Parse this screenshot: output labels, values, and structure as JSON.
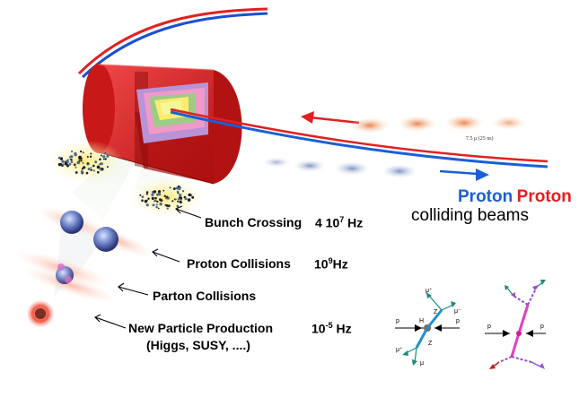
{
  "labels": {
    "bunch_crossing": "Bunch Crossing",
    "bunch_rate_mantissa": "4 10",
    "bunch_rate_exp": "7",
    "bunch_rate_unit": " Hz",
    "proton_collisions": "Proton Collisions",
    "proton_rate_base": "10",
    "proton_rate_exp": "9",
    "proton_rate_unit": "Hz",
    "parton_collisions": "Parton Collisions",
    "new_particle": "New Particle Production",
    "new_particle_rate_base": "10",
    "new_particle_rate_exp": "-5",
    "new_particle_rate_unit": " Hz",
    "new_particle_examples": "(Higgs, SUSY, ....)"
  },
  "beams": {
    "proton_left": "Proton",
    "proton_right": "Proton",
    "colliding_beams": "colliding beams",
    "bunch_spacing_note": "7.5 μ  (25 ns)"
  },
  "colors": {
    "proton_blue": "#1a5fd6",
    "proton_red": "#e22020",
    "detector_red": "#d41a1a"
  },
  "feynman_left": {
    "p_left": "p",
    "p_right": "p",
    "H": "H",
    "Z_upper": "Z",
    "Z_lower": "Z",
    "mu_top_left": "μ⁺",
    "mu_top_right": "μ⁻",
    "mu_bottom_left": "μ⁺",
    "mu_bottom": "μ"
  },
  "feynman_right": {
    "p_left": "p",
    "p_right": "p"
  }
}
